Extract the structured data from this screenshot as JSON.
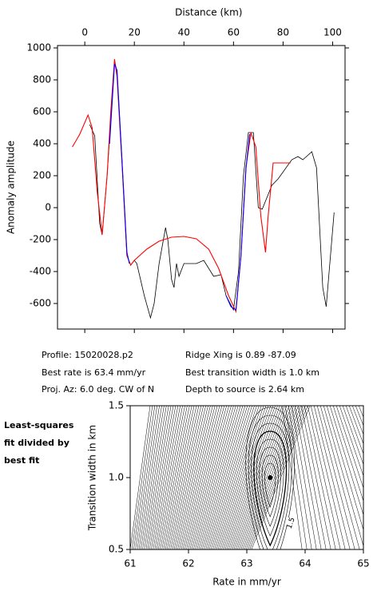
{
  "chart_data": [
    {
      "type": "line",
      "x_label": "Distance (km)",
      "y_label": "Anomaly amplitude",
      "xlim": [
        -11,
        105
      ],
      "ylim": [
        -760,
        1015
      ],
      "xticks": [
        0,
        20,
        40,
        60,
        80,
        100
      ],
      "yticks": [
        -600,
        -400,
        -200,
        0,
        200,
        400,
        600,
        800,
        1000
      ],
      "series": [
        {
          "color": "#000000",
          "x": [
            2,
            4,
            6,
            7,
            9,
            10.5,
            12,
            13,
            15,
            17,
            18.5,
            20,
            21,
            24,
            26.5,
            28,
            30,
            32.6,
            33.5,
            35,
            36,
            37,
            38,
            40,
            45,
            48,
            52,
            55,
            57,
            60,
            62,
            64,
            66,
            68,
            70,
            71.6,
            75.5,
            78,
            83.5,
            86,
            88,
            91.6,
            93.5,
            96,
            97.4,
            100.6
          ],
          "values": [
            520,
            450,
            -100,
            -170,
            200,
            550,
            920,
            850,
            300,
            -300,
            -360,
            -330,
            -350,
            -550,
            -690,
            -600,
            -350,
            -125,
            -200,
            -450,
            -500,
            -350,
            -430,
            -350,
            -350,
            -330,
            -430,
            -420,
            -550,
            -640,
            -400,
            200,
            470,
            470,
            0,
            -10,
            140,
            180,
            300,
            320,
            300,
            350,
            250,
            -500,
            -620,
            -30
          ]
        },
        {
          "color": "#ff0000",
          "x": [
            -5,
            -2,
            1.3,
            3,
            5,
            7,
            9,
            10.5,
            12,
            13,
            15,
            17,
            18.5,
            20,
            25,
            30,
            35,
            40,
            45,
            50,
            54,
            58,
            61,
            63,
            65,
            67,
            69,
            71,
            72.9,
            74,
            76,
            83
          ],
          "values": [
            380,
            460,
            580,
            500,
            100,
            -170,
            200,
            600,
            930,
            820,
            280,
            -300,
            -360,
            -330,
            -260,
            -210,
            -185,
            -180,
            -195,
            -260,
            -380,
            -550,
            -650,
            -300,
            250,
            470,
            380,
            -50,
            -280,
            -50,
            280,
            280
          ]
        },
        {
          "color": "#0000ff",
          "x": [
            10,
            12,
            13,
            15,
            17,
            18,
            30,
            57,
            59,
            61,
            63,
            65,
            66.5
          ],
          "values": [
            400,
            900,
            860,
            300,
            -280,
            -350,
            null,
            -550,
            -620,
            -640,
            -300,
            240,
            460
          ]
        }
      ]
    },
    {
      "type": "contour",
      "x_label": "Rate in mm/yr",
      "y_label": "Transition width in km",
      "xlim": [
        61,
        65
      ],
      "ylim": [
        0.5,
        1.5
      ],
      "xticks": [
        61,
        62,
        63,
        64,
        65
      ],
      "yticks": [
        0.5,
        {
          "value": 1,
          "label": "1.0"
        },
        1.5
      ],
      "best": {
        "x": 63.4,
        "y": 1
      },
      "contour_label": "1.5"
    }
  ],
  "info": [
    "Profile: 15020028.p2",
    "Ridge Xing is 0.89 -87.09",
    "Best rate is 63.4 mm/yr",
    "Best transition width is 1.0 km",
    "Proj. Az: 6.0 deg. CW of N",
    "Depth to source is   2.64 km"
  ],
  "side_label": [
    "Least-squares",
    "fit divided by",
    "best fit"
  ]
}
